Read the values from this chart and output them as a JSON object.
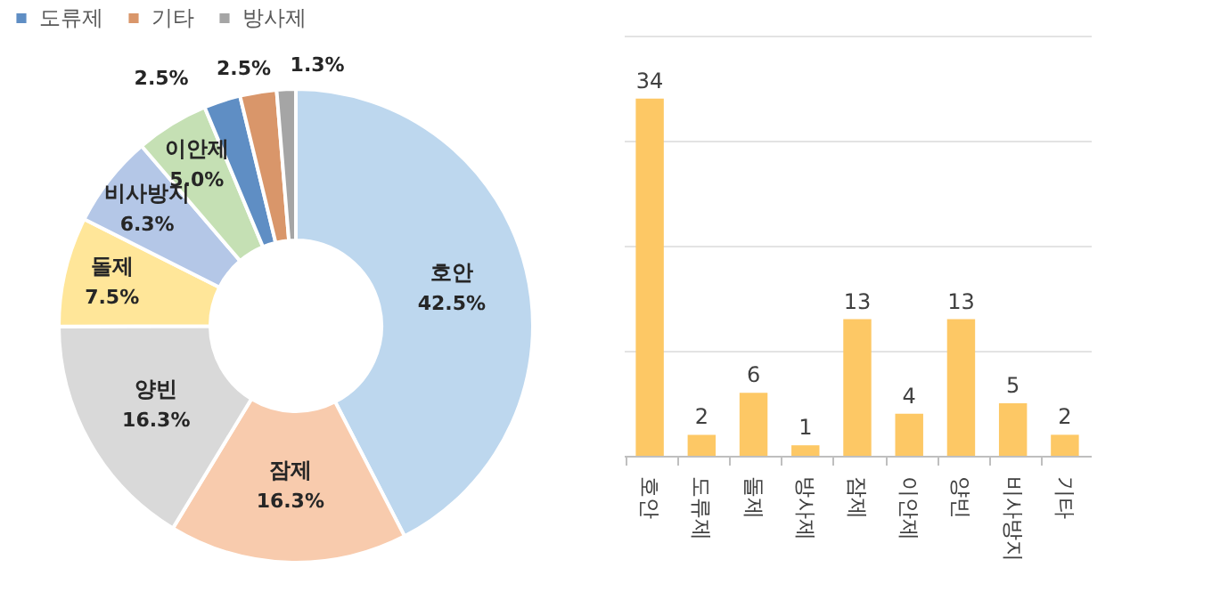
{
  "chart_data": [
    {
      "type": "donut",
      "categories": [
        "호안",
        "잠제",
        "양빈",
        "돌제",
        "비사방지",
        "이안제",
        "도류제",
        "기타",
        "방사제"
      ],
      "values": [
        42.5,
        16.3,
        16.3,
        7.5,
        6.3,
        5.0,
        2.5,
        2.5,
        1.3
      ],
      "colors": [
        "#bdd7ee",
        "#f8cbad",
        "#d9d9d9",
        "#ffe699",
        "#b4c7e7",
        "#c5e0b4",
        "#5f8ec4",
        "#d9966a",
        "#a5a5a5"
      ],
      "value_labels": [
        "42.5%",
        "16.3%",
        "16.3%",
        "7.5%",
        "6.3%",
        "5.0%",
        "2.5%",
        "2.5%",
        "1.3%"
      ],
      "legend": "top"
    },
    {
      "type": "bar",
      "categories": [
        "호안",
        "도류제",
        "돌제",
        "방사제",
        "잠제",
        "이안제",
        "양빈",
        "비사방지",
        "기타"
      ],
      "values": [
        34,
        2,
        6,
        1,
        13,
        4,
        13,
        5,
        2
      ],
      "color": "#fdc865",
      "ylim": [
        0,
        40
      ],
      "yticks": [
        {
          "value": 0,
          "label": null
        },
        {
          "value": 10,
          "label": null
        },
        {
          "value": 20,
          "label": null
        },
        {
          "value": 30,
          "label": null
        },
        {
          "value": 40,
          "label": null
        }
      ],
      "grid": true,
      "tick_labels": "x",
      "data_labels": true
    }
  ]
}
